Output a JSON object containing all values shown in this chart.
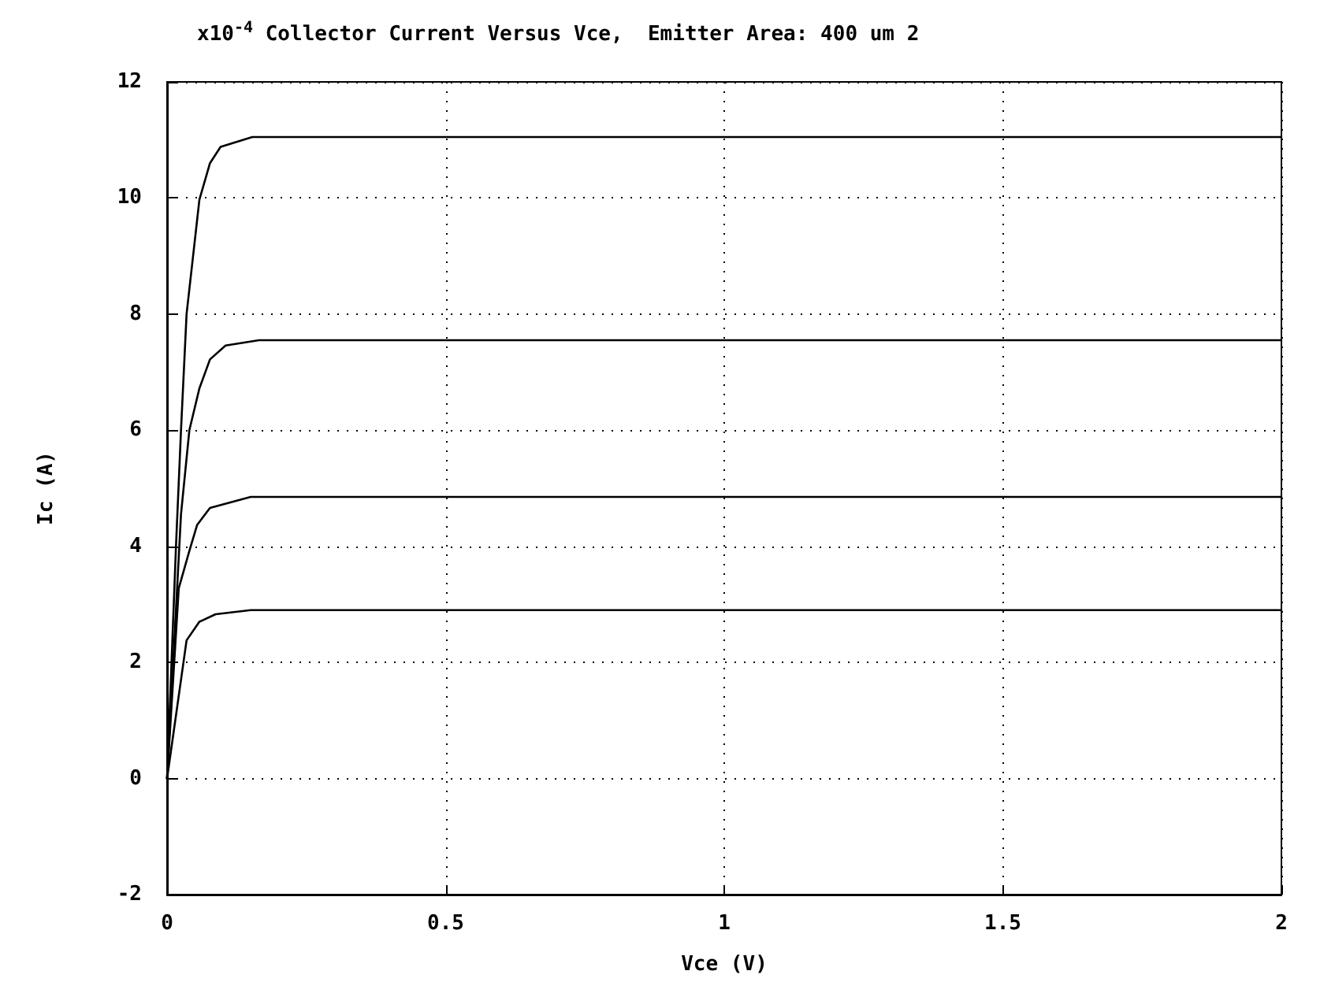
{
  "chart_data": {
    "type": "line",
    "title": "x10$^{-4}$ Collector Current Versus Vce,  Emitter Area: 400 um 2",
    "xlabel": "Vce (V)",
    "ylabel": "Ic (A)",
    "xlim": [
      0,
      2
    ],
    "xticks": [
      0,
      0.5,
      1,
      1.5,
      2
    ],
    "ylim": [
      -2,
      12
    ],
    "yticks": [
      -2,
      0,
      2,
      4,
      6,
      8,
      10,
      12
    ],
    "grid": true,
    "marker": "none",
    "line_style": "solid",
    "series": [
      {
        "color": "#000000",
        "x": [
          0,
          0.016,
          0.025,
          0.035,
          0.058,
          0.077,
          0.096,
          0.153,
          2
        ],
        "values": [
          0,
          4.0,
          6.0,
          8.0,
          9.97,
          10.6,
          10.88,
          11.05,
          11.05
        ]
      },
      {
        "color": "#000000",
        "x": [
          0,
          0.025,
          0.04,
          0.058,
          0.077,
          0.105,
          0.165,
          2
        ],
        "values": [
          0,
          4.55,
          6.0,
          6.72,
          7.22,
          7.46,
          7.55,
          7.55
        ]
      },
      {
        "color": "#000000",
        "x": [
          0,
          0.021,
          0.04,
          0.054,
          0.077,
          0.15,
          2
        ],
        "values": [
          0,
          3.28,
          3.92,
          4.37,
          4.66,
          4.85,
          4.85
        ]
      },
      {
        "color": "#000000",
        "x": [
          0,
          0.035,
          0.058,
          0.087,
          0.15,
          2
        ],
        "values": [
          0,
          2.38,
          2.7,
          2.83,
          2.9,
          2.9
        ]
      }
    ]
  }
}
